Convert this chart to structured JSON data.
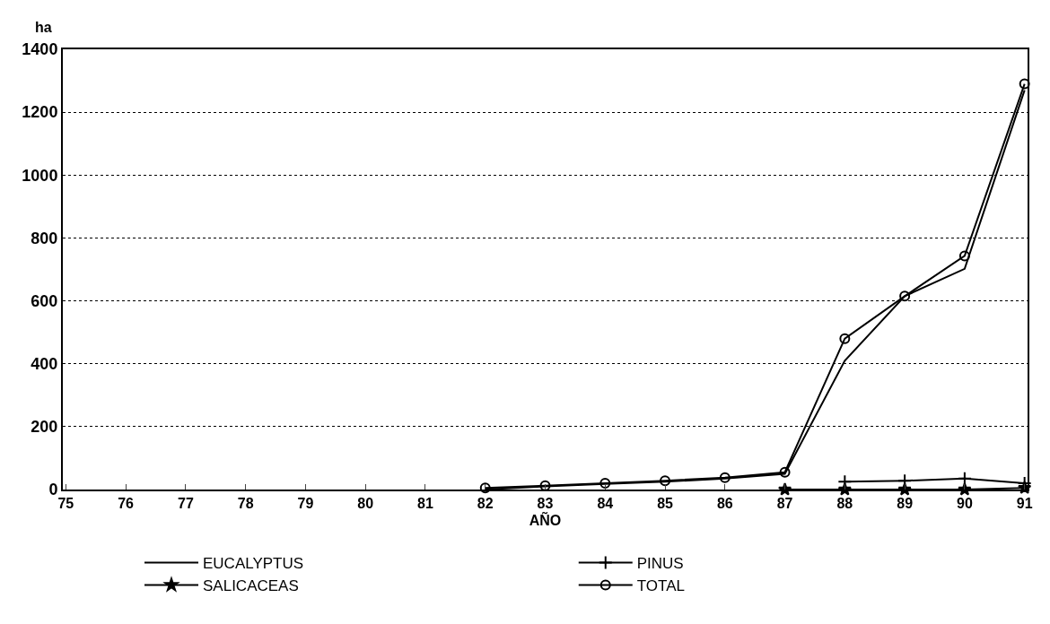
{
  "chart_data": {
    "type": "line",
    "xlabel": "AÑO",
    "ylabel": "ha",
    "categories": [
      "75",
      "76",
      "77",
      "78",
      "79",
      "80",
      "81",
      "82",
      "83",
      "84",
      "85",
      "86",
      "87",
      "88",
      "89",
      "90",
      "91"
    ],
    "series": [
      {
        "name": "EUCALYPTUS",
        "color": "#000000",
        "marker": "none",
        "values": [
          null,
          null,
          null,
          null,
          null,
          null,
          null,
          0,
          10,
          18,
          25,
          35,
          50,
          410,
          615,
          702,
          1270
        ]
      },
      {
        "name": "PINUS",
        "color": "#000000",
        "marker": "cross",
        "values": [
          null,
          null,
          null,
          null,
          null,
          null,
          null,
          null,
          null,
          null,
          null,
          null,
          null,
          25,
          28,
          35,
          20
        ]
      },
      {
        "name": "SALICACEAS",
        "color": "#000000",
        "marker": "star",
        "values": [
          null,
          null,
          null,
          null,
          null,
          null,
          null,
          null,
          null,
          null,
          null,
          null,
          0,
          0,
          0,
          0,
          5
        ]
      },
      {
        "name": "TOTAL",
        "color": "#000000",
        "marker": "circle",
        "values": [
          null,
          null,
          null,
          null,
          null,
          null,
          null,
          5,
          12,
          20,
          28,
          38,
          55,
          480,
          615,
          743,
          1290
        ]
      }
    ],
    "ylim": [
      0,
      1400
    ],
    "yticks": [
      0,
      200,
      400,
      600,
      800,
      1000,
      1200,
      1400
    ],
    "grid": "y",
    "legend": "bottom"
  }
}
